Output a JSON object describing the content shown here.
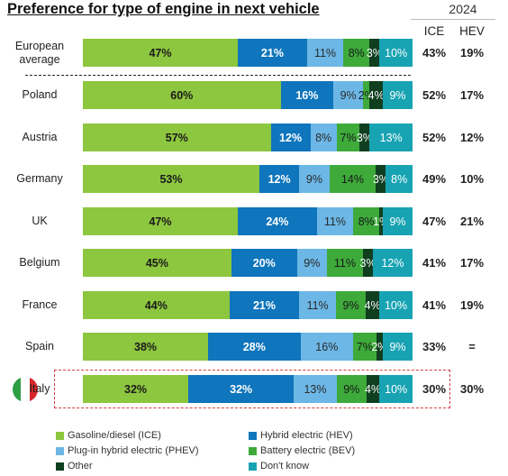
{
  "title": "Preference for type of engine in next vehicle",
  "year_label": "2024",
  "col_headers": {
    "ice": "ICE",
    "hev": "HEV"
  },
  "colors": {
    "ice": "#8dc63f",
    "hev": "#0f75bc",
    "phev": "#6cb7e6",
    "bev": "#3daa3a",
    "other": "#103f20",
    "dontknow": "#18a3b3",
    "highlight_border": "#d04040",
    "flag": [
      "#2e9e44",
      "#ffffff",
      "#d6262b"
    ]
  },
  "chart_data": {
    "type": "bar",
    "orientation": "horizontal-stacked-100",
    "title": "Preference for type of engine in next vehicle",
    "legend_placement": "bottom",
    "series": [
      {
        "key": "ice",
        "name": "Gasoline/diesel (ICE)"
      },
      {
        "key": "hev",
        "name": "Hybrid electric (HEV)"
      },
      {
        "key": "phev",
        "name": "Plug-in hybrid electric (PHEV)"
      },
      {
        "key": "bev",
        "name": "Battery electric (BEV)"
      },
      {
        "key": "other",
        "name": "Other"
      },
      {
        "key": "dontknow",
        "name": "Don't know"
      }
    ],
    "rows": [
      {
        "label": "European average",
        "values": [
          47,
          21,
          11,
          8,
          3,
          10
        ],
        "labels": [
          "47%",
          "21%",
          "11%",
          "8%",
          "3%",
          "10%"
        ],
        "ice_2024": "43%",
        "hev_2024": "19%"
      },
      {
        "label": "Poland",
        "values": [
          60,
          16,
          9,
          2,
          4,
          9
        ],
        "labels": [
          "60%",
          "16%",
          "9%",
          "2%",
          "4%",
          "9%"
        ],
        "ice_2024": "52%",
        "hev_2024": "17%"
      },
      {
        "label": "Austria",
        "values": [
          57,
          12,
          8,
          7,
          3,
          13
        ],
        "labels": [
          "57%",
          "12%",
          "8%",
          "7%",
          "3%",
          "13%"
        ],
        "ice_2024": "52%",
        "hev_2024": "12%"
      },
      {
        "label": "Germany",
        "values": [
          53,
          12,
          9,
          14,
          3,
          8
        ],
        "labels": [
          "53%",
          "12%",
          "9%",
          "14%",
          "3%",
          "8%"
        ],
        "ice_2024": "49%",
        "hev_2024": "10%"
      },
      {
        "label": "UK",
        "values": [
          47,
          24,
          11,
          8,
          1,
          9
        ],
        "labels": [
          "47%",
          "24%",
          "11%",
          "8%",
          "1%",
          "9%"
        ],
        "ice_2024": "47%",
        "hev_2024": "21%"
      },
      {
        "label": "Belgium",
        "values": [
          45,
          20,
          9,
          11,
          3,
          12
        ],
        "labels": [
          "45%",
          "20%",
          "9%",
          "11%",
          "3%",
          "12%"
        ],
        "ice_2024": "41%",
        "hev_2024": "17%"
      },
      {
        "label": "France",
        "values": [
          44,
          21,
          11,
          9,
          4,
          10
        ],
        "labels": [
          "44%",
          "21%",
          "11%",
          "9%",
          "4%",
          "10%"
        ],
        "ice_2024": "41%",
        "hev_2024": "19%"
      },
      {
        "label": "Spain",
        "values": [
          38,
          28,
          16,
          7,
          2,
          9
        ],
        "labels": [
          "38%",
          "28%",
          "16%",
          "7%",
          "2%",
          "9%"
        ],
        "ice_2024": "33%",
        "hev_2024": "="
      },
      {
        "label": "Italy",
        "values": [
          32,
          32,
          13,
          9,
          4,
          10
        ],
        "labels": [
          "32%",
          "32%",
          "13%",
          "9%",
          "4%",
          "10%"
        ],
        "ice_2024": "30%",
        "hev_2024": "30%",
        "highlighted": true
      }
    ]
  }
}
